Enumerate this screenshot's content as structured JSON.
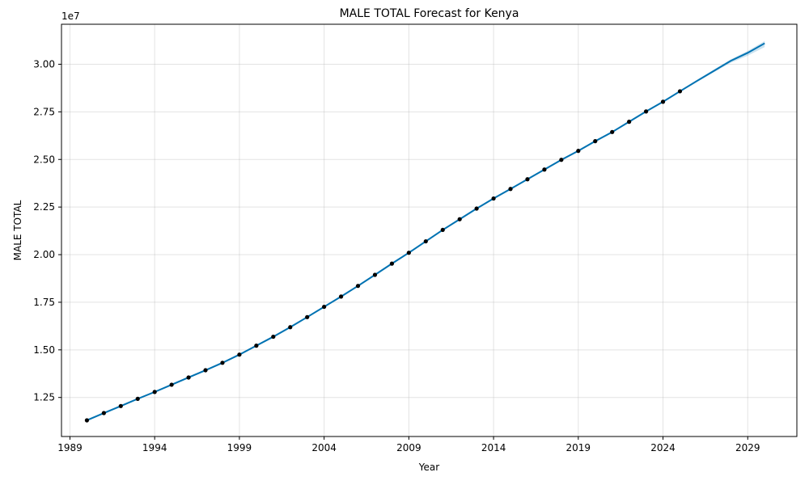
{
  "chart_data": {
    "type": "line",
    "title": "MALE TOTAL Forecast for Kenya",
    "xlabel": "Year",
    "ylabel": "MALE TOTAL",
    "offset_label": "1e7",
    "xlim": [
      1988.5,
      2031.9
    ],
    "ylim": [
      10450000,
      32100000
    ],
    "x_ticks": [
      1989,
      1994,
      1999,
      2004,
      2009,
      2014,
      2019,
      2024,
      2029
    ],
    "x_tick_labels": [
      "1989",
      "1994",
      "1999",
      "2004",
      "2009",
      "2014",
      "2019",
      "2024",
      "2029"
    ],
    "y_ticks": [
      12500000,
      15000000,
      17500000,
      20000000,
      22500000,
      25000000,
      27500000,
      30000000
    ],
    "y_tick_labels": [
      "1.25",
      "1.50",
      "1.75",
      "2.00",
      "2.25",
      "2.50",
      "2.75",
      "3.00"
    ],
    "grid": true,
    "colors": {
      "forecast": "#0072B2",
      "band": "#0072B2",
      "observed": "#000000"
    },
    "observed": {
      "x": [
        1990,
        1991,
        1992,
        1993,
        1994,
        1995,
        1996,
        1997,
        1998,
        1999,
        2000,
        2001,
        2002,
        2003,
        2004,
        2005,
        2006,
        2007,
        2008,
        2009,
        2010,
        2011,
        2012,
        2013,
        2014,
        2015,
        2016,
        2017,
        2018,
        2019,
        2020,
        2021,
        2022,
        2023,
        2024,
        2025
      ],
      "y": [
        11300000,
        11680000,
        12050000,
        12430000,
        12790000,
        13170000,
        13550000,
        13930000,
        14320000,
        14750000,
        15220000,
        15690000,
        16190000,
        16720000,
        17260000,
        17800000,
        18360000,
        18940000,
        19530000,
        20100000,
        20700000,
        21300000,
        21860000,
        22420000,
        22950000,
        23450000,
        23960000,
        24470000,
        24980000,
        25450000,
        25960000,
        26440000,
        26980000,
        27520000,
        28030000,
        28580000
      ]
    },
    "forecast": {
      "x": [
        1990,
        1991,
        1992,
        1993,
        1994,
        1995,
        1996,
        1997,
        1998,
        1999,
        2000,
        2001,
        2002,
        2003,
        2004,
        2005,
        2006,
        2007,
        2008,
        2009,
        2010,
        2011,
        2012,
        2013,
        2014,
        2015,
        2016,
        2017,
        2018,
        2019,
        2020,
        2021,
        2022,
        2023,
        2024,
        2025,
        2026,
        2027,
        2028,
        2029,
        2030
      ],
      "y": [
        11300000,
        11680000,
        12050000,
        12430000,
        12790000,
        13170000,
        13550000,
        13930000,
        14320000,
        14750000,
        15220000,
        15690000,
        16190000,
        16720000,
        17260000,
        17800000,
        18360000,
        18940000,
        19530000,
        20100000,
        20700000,
        21300000,
        21860000,
        22420000,
        22950000,
        23450000,
        23960000,
        24470000,
        24980000,
        25450000,
        25960000,
        26440000,
        26980000,
        27520000,
        28030000,
        28580000,
        29120000,
        29650000,
        30180000,
        30600000,
        31100000
      ],
      "lower": [
        11250000,
        11630000,
        12000000,
        12380000,
        12740000,
        13120000,
        13500000,
        13880000,
        14270000,
        14700000,
        15170000,
        15640000,
        16140000,
        16670000,
        17210000,
        17750000,
        18310000,
        18890000,
        19480000,
        20050000,
        20650000,
        21250000,
        21810000,
        22370000,
        22900000,
        23400000,
        23910000,
        24420000,
        24930000,
        25400000,
        25910000,
        26390000,
        26930000,
        27470000,
        27980000,
        28530000,
        29060000,
        29580000,
        30080000,
        30450000,
        30900000
      ],
      "upper": [
        11350000,
        11730000,
        12100000,
        12480000,
        12840000,
        13220000,
        13600000,
        13980000,
        14370000,
        14800000,
        15270000,
        15740000,
        16240000,
        16770000,
        17310000,
        17850000,
        18410000,
        18990000,
        19580000,
        20150000,
        20750000,
        21350000,
        21910000,
        22470000,
        23000000,
        23500000,
        24010000,
        24520000,
        25030000,
        25500000,
        26010000,
        26490000,
        27030000,
        27570000,
        28080000,
        28630000,
        29180000,
        29720000,
        30260000,
        30700000,
        31220000
      ]
    }
  }
}
